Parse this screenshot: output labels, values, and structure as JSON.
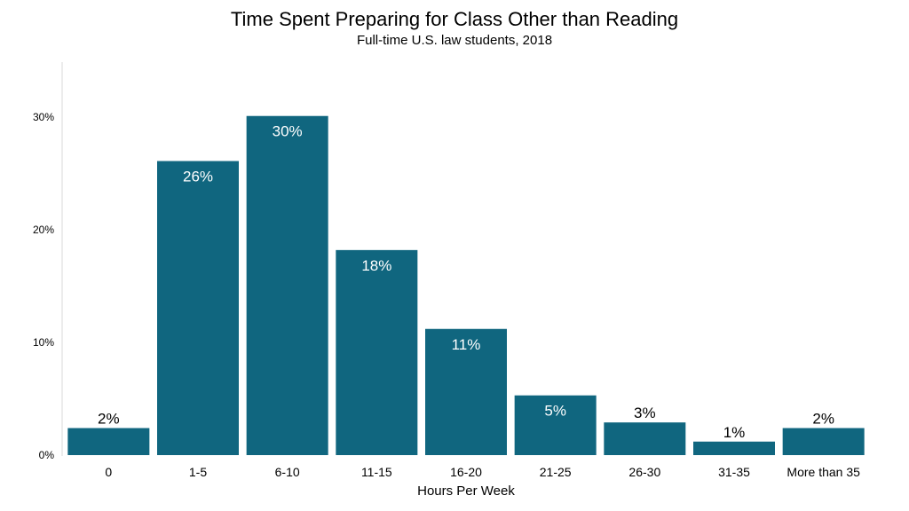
{
  "chart_data": {
    "type": "bar",
    "title": "Time Spent Preparing for Class Other than Reading",
    "subtitle": "Full-time U.S. law students, 2018",
    "xlabel": "Hours Per Week",
    "ylabel": "",
    "categories": [
      "0",
      "1-5",
      "6-10",
      "11-15",
      "16-20",
      "21-25",
      "26-30",
      "31-35",
      "More than 35"
    ],
    "values": [
      2.4,
      26.1,
      30.1,
      18.2,
      11.2,
      5.3,
      2.9,
      1.2,
      2.4
    ],
    "data_labels": [
      "2%",
      "26%",
      "30%",
      "18%",
      "11%",
      "5%",
      "3%",
      "1%",
      "2%"
    ],
    "y_ticks": [
      0,
      10,
      20,
      30
    ],
    "y_tick_labels": [
      "0%",
      "10%",
      "20%",
      "30%"
    ],
    "ylim": [
      0,
      35
    ],
    "grid": false,
    "legend": "none",
    "bar_color": "#10667f",
    "inside_label_color": "#ffffff",
    "outside_label_color": "#000000"
  }
}
